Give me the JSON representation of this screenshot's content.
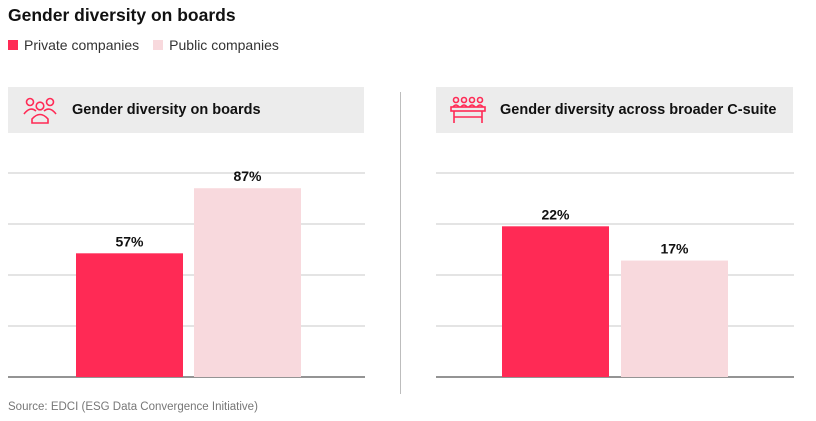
{
  "title": "Gender diversity on boards",
  "legend": [
    {
      "label": "Private companies",
      "color": "#ff2a55"
    },
    {
      "label": "Public companies",
      "color": "#f8d9dd"
    }
  ],
  "panels": [
    {
      "header": "Gender diversity on boards",
      "icon": "people-group-icon"
    },
    {
      "header": "Gender diversity across broader C-suite",
      "icon": "meeting-table-icon"
    }
  ],
  "source": "Source: EDCI (ESG Data Convergence Initiative)",
  "chart_data": [
    {
      "type": "bar",
      "title": "Gender diversity on boards",
      "categories": [
        "Private companies",
        "Public companies"
      ],
      "values": [
        57,
        87
      ],
      "labels": [
        "57%",
        "87%"
      ],
      "colors": [
        "#ff2a55",
        "#f8d9dd"
      ],
      "ylim": [
        0,
        100
      ],
      "grid": true
    },
    {
      "type": "bar",
      "title": "Gender diversity across broader C-suite",
      "categories": [
        "Private companies",
        "Public companies"
      ],
      "values": [
        22,
        17
      ],
      "labels": [
        "22%",
        "17%"
      ],
      "colors": [
        "#ff2a55",
        "#f8d9dd"
      ],
      "ylim": [
        0,
        30
      ],
      "grid": true
    }
  ]
}
